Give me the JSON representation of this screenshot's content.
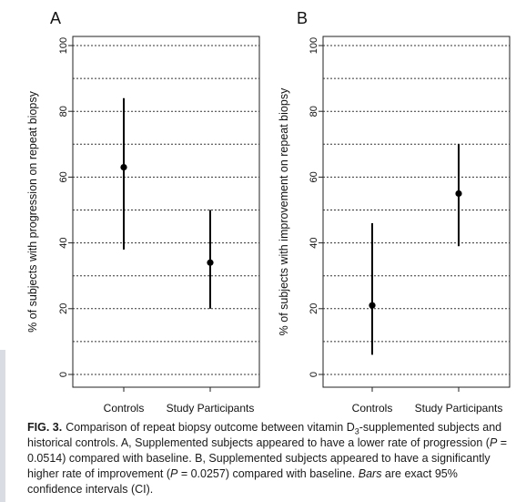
{
  "chart_data": [
    {
      "type": "scatter",
      "panel": "A",
      "ylabel": "% of subjects with progression on repeat biopsy",
      "categories": [
        "Controls",
        "Study Participants"
      ],
      "ylim": [
        0,
        100
      ],
      "yticks": [
        0,
        20,
        40,
        60,
        80,
        100
      ],
      "grid_lines": [
        0,
        10,
        20,
        30,
        40,
        50,
        60,
        70,
        80,
        90,
        100
      ],
      "grid": true,
      "points": [
        {
          "category": "Controls",
          "value": 63,
          "ci_low": 38,
          "ci_high": 84
        },
        {
          "category": "Study Participants",
          "value": 34,
          "ci_low": 20,
          "ci_high": 50
        }
      ]
    },
    {
      "type": "scatter",
      "panel": "B",
      "ylabel": "% of subjects with improvement on repeat biopsy",
      "categories": [
        "Controls",
        "Study Participants"
      ],
      "ylim": [
        0,
        100
      ],
      "yticks": [
        0,
        20,
        40,
        60,
        80,
        100
      ],
      "grid_lines": [
        0,
        10,
        20,
        30,
        40,
        50,
        60,
        70,
        80,
        90,
        100
      ],
      "grid": true,
      "points": [
        {
          "category": "Controls",
          "value": 21,
          "ci_low": 6,
          "ci_high": 46
        },
        {
          "category": "Study Participants",
          "value": 55,
          "ci_low": 39,
          "ci_high": 70
        }
      ]
    }
  ],
  "caption": {
    "fig_label": "FIG. 3.",
    "text_1": "Comparison of repeat biopsy outcome between vitamin D",
    "sub_1": "3",
    "text_2": "-supplemented subjects and historical controls. A, Supplemented subjects appeared to have a lower rate of progression (",
    "p_1_italic": "P",
    "text_3": " = 0.0514) compared with baseline. B, Supplemented subjects appeared to have a significantly higher rate of improvement (",
    "p_2_italic": "P",
    "text_4": " = 0.0257) compared with baseline. ",
    "bars_italic": "Bars",
    "text_5": " are exact 95% confidence intervals (CI)."
  }
}
